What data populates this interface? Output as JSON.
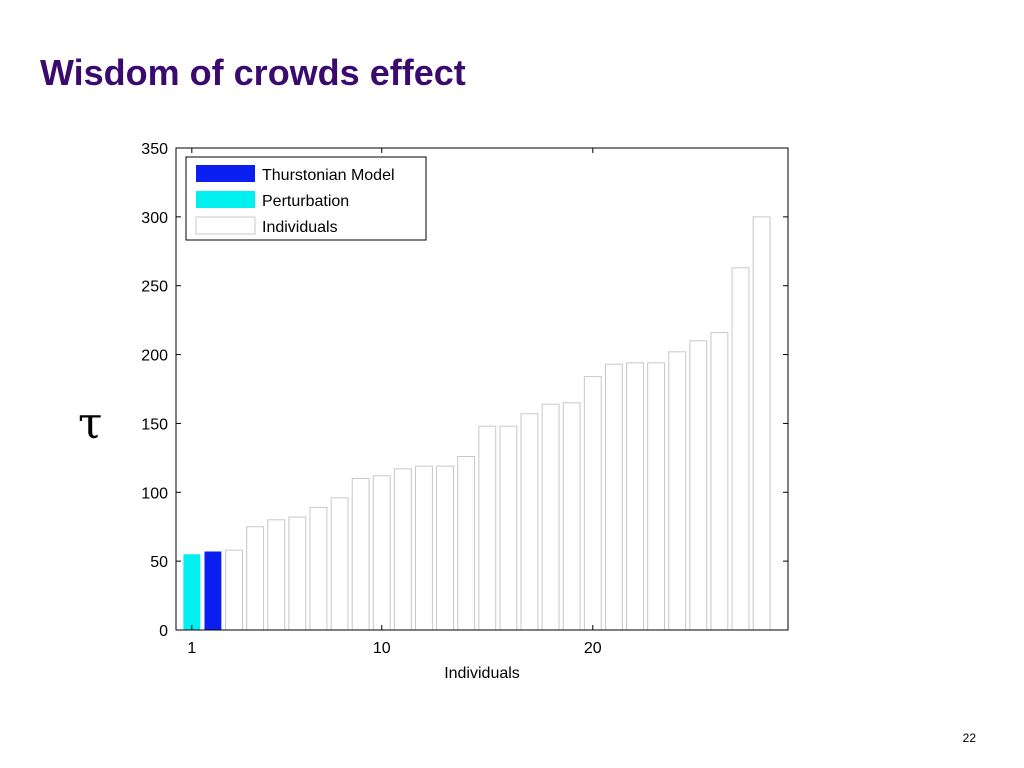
{
  "slide": {
    "title": "Wisdom of crowds effect",
    "page_number": "22"
  },
  "colors": {
    "title": "#3a0a6e",
    "thurstonian": "#0a1ff0",
    "perturbation": "#00f0f0",
    "individuals": "#ffffff"
  },
  "chart_data": {
    "type": "bar",
    "xlabel": "Individuals",
    "ylabel": "τ",
    "ylim": [
      0,
      350
    ],
    "yticks": [
      0,
      50,
      100,
      150,
      200,
      250,
      300,
      350
    ],
    "xticks": [
      {
        "pos": 1,
        "label": "1"
      },
      {
        "pos": 10,
        "label": "10"
      },
      {
        "pos": 20,
        "label": "20"
      }
    ],
    "xlim": [
      0.25,
      29.25
    ],
    "legend_position": "top-left",
    "legend": [
      {
        "key": "thurstonian",
        "label": "Thurstonian Model"
      },
      {
        "key": "perturbation",
        "label": "Perturbation"
      },
      {
        "key": "individuals",
        "label": "Individuals"
      }
    ],
    "bars": [
      {
        "x": 1,
        "value": 55,
        "series": "perturbation"
      },
      {
        "x": 2,
        "value": 57,
        "series": "thurstonian"
      },
      {
        "x": 3,
        "value": 58,
        "series": "individuals"
      },
      {
        "x": 4,
        "value": 75,
        "series": "individuals"
      },
      {
        "x": 5,
        "value": 80,
        "series": "individuals"
      },
      {
        "x": 6,
        "value": 82,
        "series": "individuals"
      },
      {
        "x": 7,
        "value": 89,
        "series": "individuals"
      },
      {
        "x": 8,
        "value": 96,
        "series": "individuals"
      },
      {
        "x": 9,
        "value": 110,
        "series": "individuals"
      },
      {
        "x": 10,
        "value": 112,
        "series": "individuals"
      },
      {
        "x": 11,
        "value": 117,
        "series": "individuals"
      },
      {
        "x": 12,
        "value": 119,
        "series": "individuals"
      },
      {
        "x": 13,
        "value": 119,
        "series": "individuals"
      },
      {
        "x": 14,
        "value": 126,
        "series": "individuals"
      },
      {
        "x": 15,
        "value": 148,
        "series": "individuals"
      },
      {
        "x": 16,
        "value": 148,
        "series": "individuals"
      },
      {
        "x": 17,
        "value": 157,
        "series": "individuals"
      },
      {
        "x": 18,
        "value": 164,
        "series": "individuals"
      },
      {
        "x": 19,
        "value": 165,
        "series": "individuals"
      },
      {
        "x": 20,
        "value": 184,
        "series": "individuals"
      },
      {
        "x": 21,
        "value": 193,
        "series": "individuals"
      },
      {
        "x": 22,
        "value": 194,
        "series": "individuals"
      },
      {
        "x": 23,
        "value": 194,
        "series": "individuals"
      },
      {
        "x": 24,
        "value": 202,
        "series": "individuals"
      },
      {
        "x": 25,
        "value": 210,
        "series": "individuals"
      },
      {
        "x": 26,
        "value": 216,
        "series": "individuals"
      },
      {
        "x": 27,
        "value": 263,
        "series": "individuals"
      },
      {
        "x": 28,
        "value": 300,
        "series": "individuals"
      }
    ]
  }
}
